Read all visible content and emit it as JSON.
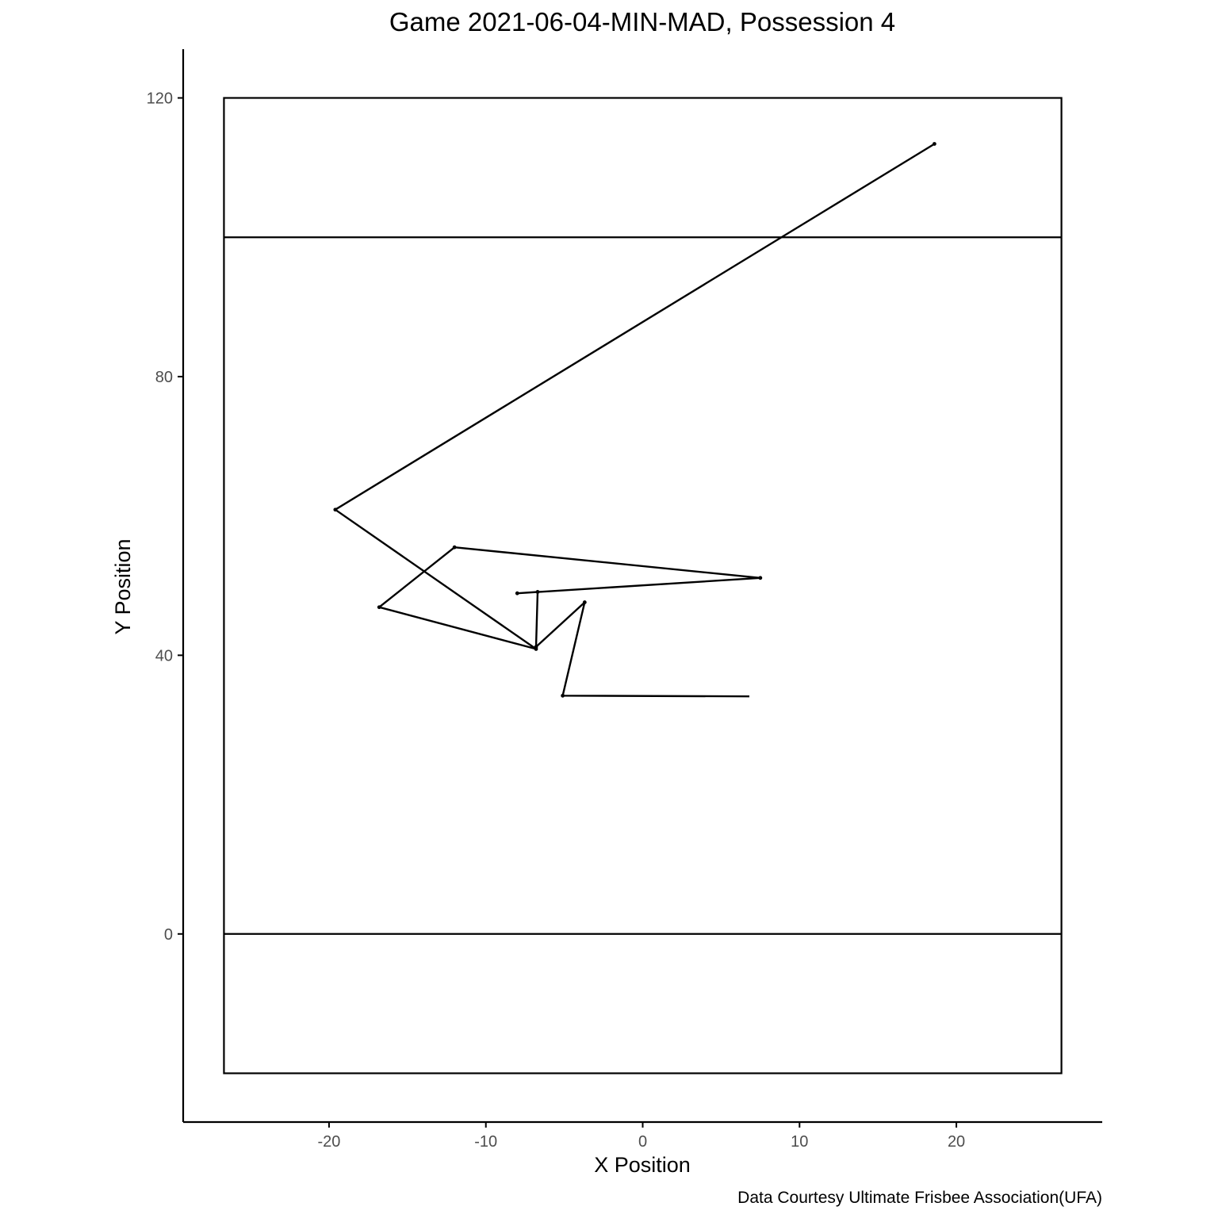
{
  "chart_data": {
    "type": "line",
    "title": "Game 2021-06-04-MIN-MAD, Possession 4",
    "xlabel": "X Position",
    "ylabel": "Y Position",
    "caption": "Data Courtesy Ultimate Frisbee Association(UFA)",
    "xlim": [
      -29.3,
      29.3
    ],
    "ylim": [
      -27,
      127
    ],
    "xticks": [
      -20,
      -10,
      0,
      10,
      20
    ],
    "yticks": [
      0,
      40,
      80,
      120
    ],
    "grid": false,
    "field": {
      "x_range": [
        -26.7,
        26.7
      ],
      "y_range": [
        -20,
        120
      ],
      "endzone_lines": [
        0,
        100
      ]
    },
    "series": [
      {
        "x": [
          6.8,
          -5.1,
          -3.7,
          -6.8,
          -6.7,
          -8.0,
          7.5,
          -12.0,
          -16.8,
          -6.8,
          -19.6,
          18.6
        ],
        "y": [
          34.1,
          34.2,
          47.6,
          41.2,
          49.1,
          48.9,
          51.1,
          55.5,
          46.9,
          40.9,
          60.9,
          113.4
        ]
      }
    ],
    "colors": {
      "line": "#000000",
      "axis": "#000000",
      "tick_label": "#4d4d4d"
    }
  }
}
